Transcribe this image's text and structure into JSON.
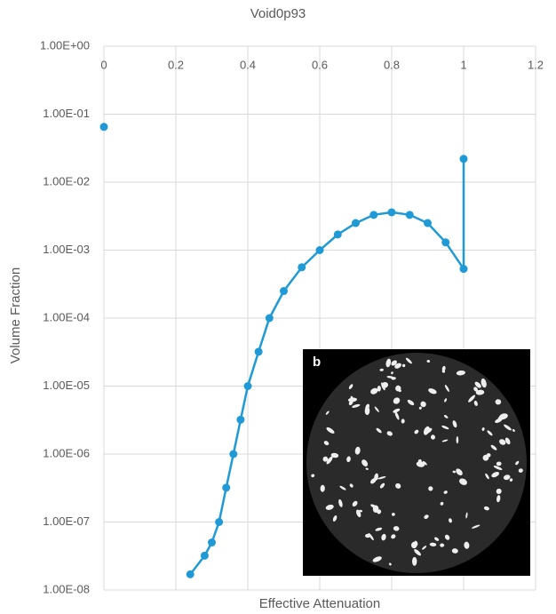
{
  "chart_data": {
    "type": "scatter",
    "title": "Void0p93",
    "x_label": "Effective Attenuation",
    "y_label": "Volume Fraction",
    "inset_label": "b",
    "log_y": true,
    "grid": true,
    "xlim": [
      0,
      1.2
    ],
    "xticks": [
      0,
      0.2,
      0.4,
      0.6,
      0.8,
      1,
      1.2
    ],
    "ylim": [
      1e-08,
      1
    ],
    "yticks": [
      {
        "value": 1e-08,
        "label": "1.00E-08"
      },
      {
        "value": 1e-07,
        "label": "1.00E-07"
      },
      {
        "value": 1e-06,
        "label": "1.00E-06"
      },
      {
        "value": 1e-05,
        "label": "1.00E-05"
      },
      {
        "value": 0.0001,
        "label": "1.00E-04"
      },
      {
        "value": 0.001,
        "label": "1.00E-03"
      },
      {
        "value": 0.01,
        "label": "1.00E-02"
      },
      {
        "value": 0.1,
        "label": "1.00E-01"
      },
      {
        "value": 1,
        "label": "1.00E+00"
      }
    ],
    "series": [
      {
        "color": "#1f9ad6",
        "x": [
          0
        ],
        "values": [
          0.065
        ]
      },
      {
        "color": "#1f9ad6",
        "x": [
          0.24,
          0.28,
          0.3,
          0.32,
          0.34,
          0.36,
          0.38,
          0.4,
          0.43,
          0.46,
          0.5,
          0.55,
          0.6,
          0.65,
          0.7,
          0.75,
          0.8,
          0.85,
          0.9,
          0.95,
          1.0,
          1.0
        ],
        "values": [
          1.7e-08,
          3.2e-08,
          5e-08,
          1e-07,
          3.2e-07,
          1e-06,
          3.2e-06,
          1e-05,
          3.2e-05,
          0.0001,
          0.00025,
          0.00056,
          0.001,
          0.0017,
          0.0025,
          0.0033,
          0.0036,
          0.0033,
          0.0025,
          0.0013,
          0.00053,
          0.022
        ]
      }
    ]
  }
}
